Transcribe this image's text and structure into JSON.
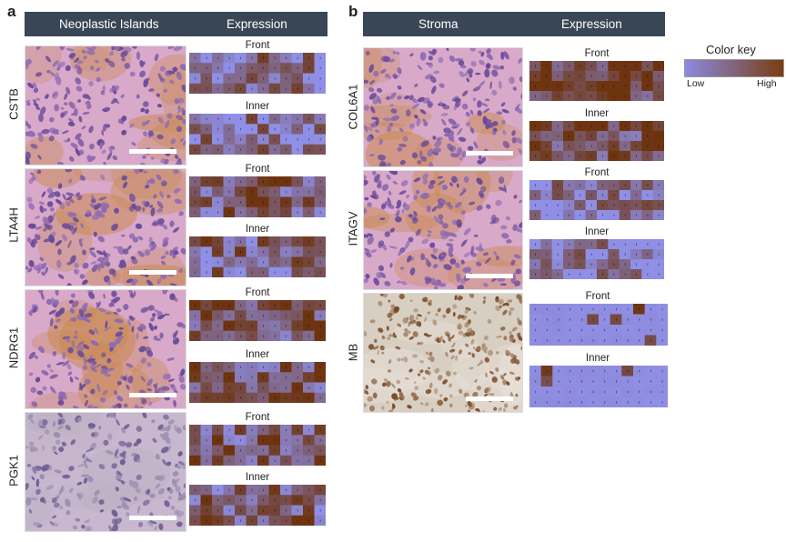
{
  "panel_a": {
    "letter": "a",
    "header_left": "Neoplastic Islands",
    "header_right": "Expression",
    "genes": [
      "CSTB",
      "LTA4H",
      "NDRG1",
      "PGK1"
    ]
  },
  "panel_b": {
    "letter": "b",
    "header_left": "Stroma",
    "header_right": "Expression",
    "genes": [
      "COL6A1",
      "ITAGV",
      "MB"
    ]
  },
  "heatmap_labels": {
    "front": "Front",
    "inner": "Inner"
  },
  "color_key": {
    "title": "Color key",
    "low": "Low",
    "high": "High",
    "low_color": "#8a8ae0",
    "high_color": "#7a3d10"
  },
  "colors": {
    "header_bg": "#384656",
    "low": "#8f8fe6",
    "high": "#6e3410"
  },
  "heatmaps": {
    "CSTB": {
      "front_level": 0.35,
      "inner_level": 0.3
    },
    "LTA4H": {
      "front_level": 0.6,
      "inner_level": 0.45
    },
    "NDRG1": {
      "front_level": 0.65,
      "inner_level": 0.6
    },
    "PGK1": {
      "front_level": 0.55,
      "inner_level": 0.5
    },
    "COL6A1": {
      "front_level": 0.85,
      "inner_level": 0.7
    },
    "ITAGV": {
      "front_level": 0.25,
      "inner_level": 0.22
    },
    "MB": {
      "front_level": 0.06,
      "inner_level": 0.06
    }
  },
  "tissue_styles": {
    "CSTB": "he",
    "LTA4H": "he",
    "NDRG1": "he",
    "PGK1": "he-pale",
    "COL6A1": "he",
    "ITAGV": "he",
    "MB": "ihc-brown"
  }
}
